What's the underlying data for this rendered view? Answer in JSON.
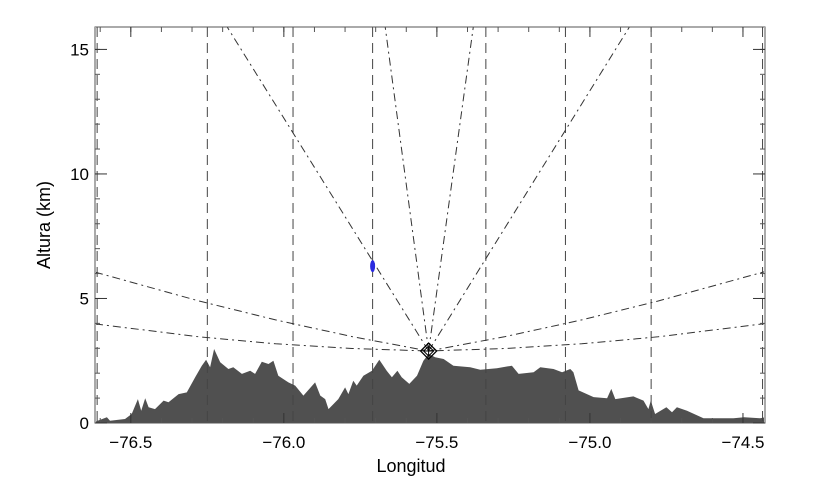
{
  "chart_data": {
    "type": "area",
    "title": "",
    "xlabel": "Longitud",
    "ylabel": "Altura (km)",
    "xlim": [
      -76.617,
      -74.428
    ],
    "ylim": [
      0,
      15.9
    ],
    "grid": false,
    "x_ticks": [
      {
        "value": -76.5,
        "label": "−76.5"
      },
      {
        "value": -76.0,
        "label": "−76.0"
      },
      {
        "value": -75.5,
        "label": "−75.5"
      },
      {
        "value": -75.0,
        "label": "−75.0"
      },
      {
        "value": -74.5,
        "label": "−74.5"
      }
    ],
    "x_minor_step": 0.1,
    "y_ticks": [
      {
        "value": 0,
        "label": "0"
      },
      {
        "value": 5,
        "label": "5"
      },
      {
        "value": 10,
        "label": "10"
      },
      {
        "value": 15,
        "label": "15"
      }
    ],
    "y_minor_step": 1,
    "terrain": {
      "color": "#505050",
      "points": [
        [
          -76.617,
          0.05
        ],
        [
          -76.578,
          0.23
        ],
        [
          -76.568,
          0.09
        ],
        [
          -76.519,
          0.16
        ],
        [
          -76.497,
          0.36
        ],
        [
          -76.477,
          0.96
        ],
        [
          -76.466,
          0.49
        ],
        [
          -76.453,
          0.99
        ],
        [
          -76.442,
          0.63
        ],
        [
          -76.421,
          0.56
        ],
        [
          -76.393,
          0.9
        ],
        [
          -76.377,
          0.83
        ],
        [
          -76.344,
          1.16
        ],
        [
          -76.317,
          1.23
        ],
        [
          -76.29,
          1.83
        ],
        [
          -76.268,
          2.3
        ],
        [
          -76.254,
          2.54
        ],
        [
          -76.241,
          2.24
        ],
        [
          -76.228,
          2.97
        ],
        [
          -76.208,
          2.44
        ],
        [
          -76.181,
          2.17
        ],
        [
          -76.165,
          2.24
        ],
        [
          -76.137,
          1.97
        ],
        [
          -76.11,
          2.1
        ],
        [
          -76.094,
          1.97
        ],
        [
          -76.072,
          2.46
        ],
        [
          -76.05,
          2.37
        ],
        [
          -76.034,
          2.5
        ],
        [
          -76.018,
          1.9
        ],
        [
          -75.985,
          1.63
        ],
        [
          -75.963,
          1.5
        ],
        [
          -75.936,
          1.1
        ],
        [
          -75.898,
          1.63
        ],
        [
          -75.881,
          1.1
        ],
        [
          -75.865,
          0.96
        ],
        [
          -75.854,
          0.56
        ],
        [
          -75.822,
          0.96
        ],
        [
          -75.8,
          1.43
        ],
        [
          -75.789,
          1.16
        ],
        [
          -75.773,
          1.7
        ],
        [
          -75.762,
          1.5
        ],
        [
          -75.74,
          1.9
        ],
        [
          -75.712,
          2.1
        ],
        [
          -75.688,
          2.54
        ],
        [
          -75.664,
          2.1
        ],
        [
          -75.647,
          1.84
        ],
        [
          -75.629,
          2.1
        ],
        [
          -75.615,
          1.84
        ],
        [
          -75.59,
          1.57
        ],
        [
          -75.565,
          1.9
        ],
        [
          -75.544,
          2.5
        ],
        [
          -75.527,
          2.77
        ],
        [
          -75.506,
          2.64
        ],
        [
          -75.478,
          2.57
        ],
        [
          -75.446,
          2.3
        ],
        [
          -75.391,
          2.24
        ],
        [
          -75.358,
          2.14
        ],
        [
          -75.304,
          2.2
        ],
        [
          -75.255,
          2.3
        ],
        [
          -75.233,
          1.97
        ],
        [
          -75.184,
          2.04
        ],
        [
          -75.162,
          2.24
        ],
        [
          -75.119,
          2.17
        ],
        [
          -75.091,
          2.04
        ],
        [
          -75.064,
          2.17
        ],
        [
          -75.054,
          2.04
        ],
        [
          -75.037,
          1.31
        ],
        [
          -74.988,
          1.04
        ],
        [
          -74.944,
          0.99
        ],
        [
          -74.93,
          1.37
        ],
        [
          -74.917,
          0.96
        ],
        [
          -74.858,
          1.07
        ],
        [
          -74.825,
          0.9
        ],
        [
          -74.809,
          0.56
        ],
        [
          -74.801,
          0.9
        ],
        [
          -74.787,
          0.36
        ],
        [
          -74.75,
          0.63
        ],
        [
          -74.732,
          0.43
        ],
        [
          -74.716,
          0.63
        ],
        [
          -74.683,
          0.49
        ],
        [
          -74.629,
          0.19
        ],
        [
          -74.531,
          0.19
        ],
        [
          -74.496,
          0.23
        ],
        [
          -74.444,
          0.19
        ],
        [
          -74.428,
          0.23
        ]
      ]
    },
    "vertical_dashed_lines": [
      -76.61,
      -76.25,
      -75.97,
      -75.71,
      -75.34,
      -75.08,
      -74.8,
      -74.436
    ],
    "radar": {
      "lon": -75.527,
      "alt": 2.89,
      "marker": "diamond-cross"
    },
    "beams": [
      {
        "style": "dash-dot",
        "points": [
          [
            -75.527,
            2.89
          ],
          [
            -76.185,
            15.9
          ]
        ]
      },
      {
        "style": "dash-dot",
        "points": [
          [
            -75.527,
            2.89
          ],
          [
            -75.669,
            15.9
          ]
        ]
      },
      {
        "style": "dash-dot",
        "points": [
          [
            -75.527,
            2.89
          ],
          [
            -75.381,
            15.9
          ]
        ]
      },
      {
        "style": "dash-dot",
        "points": [
          [
            -75.527,
            2.89
          ],
          [
            -74.871,
            15.9
          ]
        ]
      },
      {
        "style": "dash-dot",
        "points": [
          [
            -76.617,
            3.98
          ],
          [
            -76.277,
            3.46
          ],
          [
            -76.027,
            3.18
          ],
          [
            -75.777,
            2.99
          ],
          [
            -75.527,
            2.89
          ],
          [
            -75.277,
            2.99
          ],
          [
            -75.027,
            3.18
          ],
          [
            -74.777,
            3.46
          ],
          [
            -74.428,
            3.99
          ]
        ]
      },
      {
        "style": "dash-dot",
        "points": [
          [
            -76.617,
            6.06
          ],
          [
            -76.277,
            4.9
          ],
          [
            -76.027,
            4.14
          ],
          [
            -75.777,
            3.47
          ],
          [
            -75.527,
            2.89
          ],
          [
            -75.277,
            3.47
          ],
          [
            -75.027,
            4.14
          ],
          [
            -74.777,
            4.9
          ],
          [
            -74.428,
            6.08
          ]
        ]
      }
    ],
    "detection": {
      "color": "#2a2ae0",
      "lon": -75.71,
      "alt_range": [
        6.1,
        6.5
      ]
    }
  }
}
